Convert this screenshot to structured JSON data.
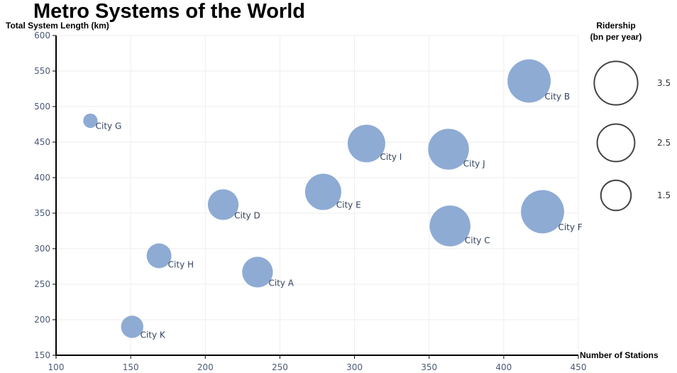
{
  "chart_data": {
    "type": "scatter",
    "title": "Metro Systems of the World",
    "xlabel": "Number of Stations",
    "ylabel": "Total System Length (km)",
    "xlim": [
      100,
      450
    ],
    "ylim": [
      150,
      600
    ],
    "x_ticks": [
      100,
      150,
      200,
      250,
      300,
      350,
      400,
      450
    ],
    "y_ticks": [
      150,
      200,
      250,
      300,
      350,
      400,
      450,
      500,
      550,
      600
    ],
    "grid": true,
    "size_legend": {
      "title_lines": [
        "Ridership",
        "(bn per year)"
      ],
      "values": [
        3.5,
        2.5,
        1.5
      ],
      "labels": [
        "3.5",
        "2.5",
        "1.5"
      ],
      "placement": "right"
    },
    "colors": {
      "bubble": "#8eabd4",
      "grid": "#eeeeee"
    },
    "points": [
      {
        "name": "City A",
        "x": 235,
        "y": 267,
        "size": 1.4
      },
      {
        "name": "City B",
        "x": 417,
        "y": 536,
        "size": 3.2
      },
      {
        "name": "City C",
        "x": 364,
        "y": 332,
        "size": 2.8
      },
      {
        "name": "City D",
        "x": 212,
        "y": 362,
        "size": 1.4
      },
      {
        "name": "City E",
        "x": 279,
        "y": 380,
        "size": 2.1
      },
      {
        "name": "City F",
        "x": 426,
        "y": 352,
        "size": 3.2
      },
      {
        "name": "City G",
        "x": 123,
        "y": 480,
        "size": 0.15
      },
      {
        "name": "City H",
        "x": 169,
        "y": 290,
        "size": 0.8
      },
      {
        "name": "City I",
        "x": 308,
        "y": 448,
        "size": 2.3
      },
      {
        "name": "City J",
        "x": 363,
        "y": 440,
        "size": 2.8
      },
      {
        "name": "City K",
        "x": 151,
        "y": 190,
        "size": 0.6
      }
    ]
  }
}
